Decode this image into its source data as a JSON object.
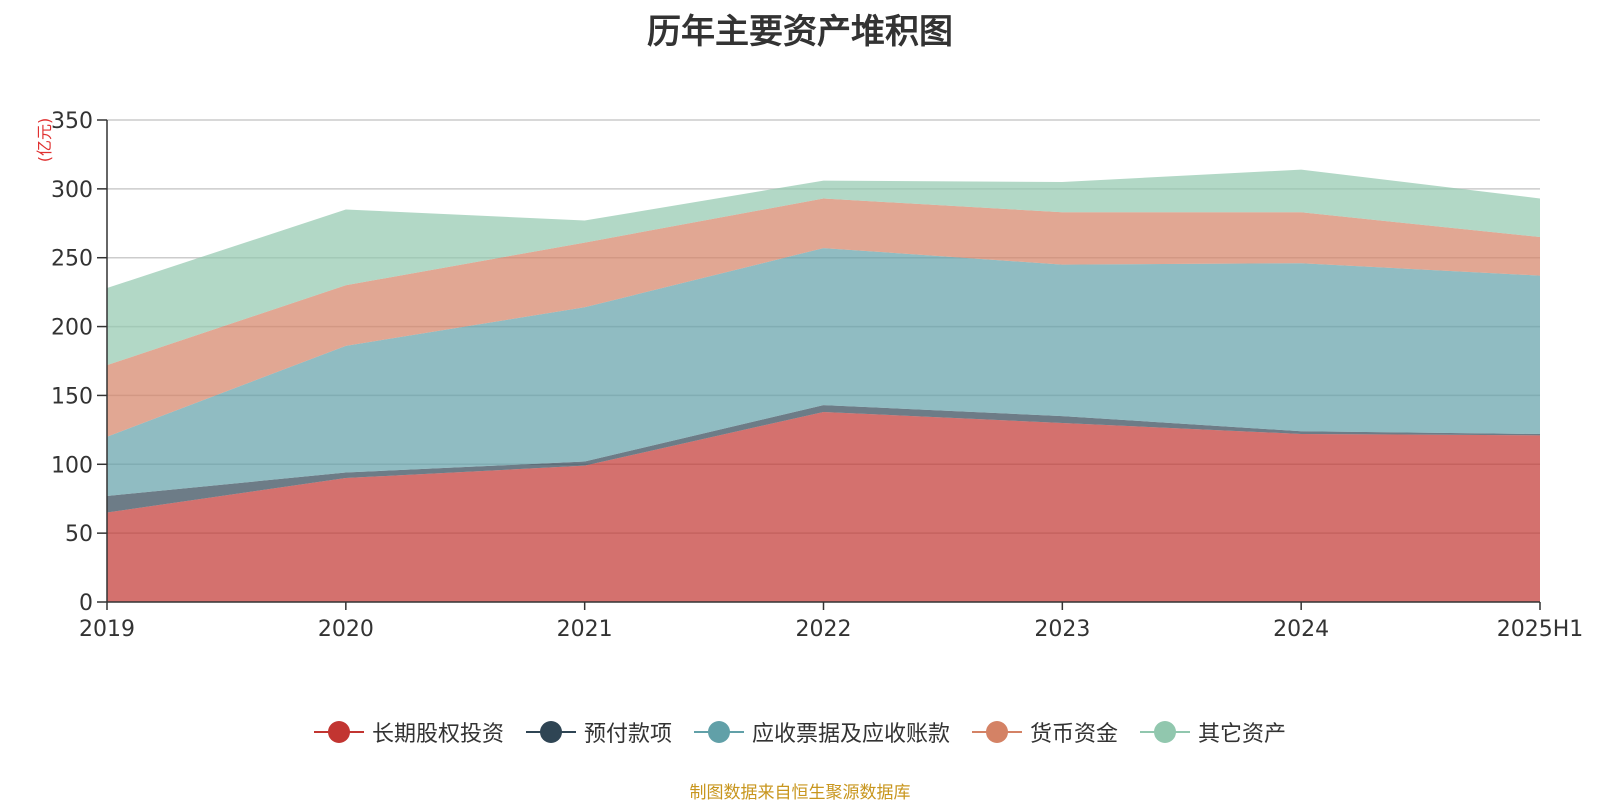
{
  "chart_data": {
    "type": "area",
    "stacked": true,
    "title": "历年主要资产堆积图",
    "unit": "(亿元)",
    "categories": [
      "2019",
      "2020",
      "2021",
      "2022",
      "2023",
      "2024",
      "2025H1"
    ],
    "ylim": [
      0,
      350
    ],
    "yticks": [
      0,
      50,
      100,
      150,
      200,
      250,
      300,
      350
    ],
    "grid": true,
    "legend_position": "bottom",
    "series": [
      {
        "name": "长期股权投资",
        "color": "#c23531",
        "values": [
          65,
          90,
          99,
          138,
          130,
          122,
          121
        ]
      },
      {
        "name": "预付款项",
        "color": "#2f4554",
        "values": [
          12,
          4,
          3,
          5,
          5,
          2,
          1
        ]
      },
      {
        "name": "应收票据及应收账款",
        "color": "#61a0a8",
        "values": [
          43,
          92,
          112,
          114,
          110,
          122,
          115
        ]
      },
      {
        "name": "货币资金",
        "color": "#d48265",
        "values": [
          52,
          44,
          47,
          36,
          38,
          37,
          28
        ]
      },
      {
        "name": "其它资产",
        "color": "#91c7ae",
        "values": [
          56,
          55,
          16,
          13,
          22,
          31,
          28
        ]
      }
    ]
  },
  "source_note": "制图数据来自恒生聚源数据库"
}
